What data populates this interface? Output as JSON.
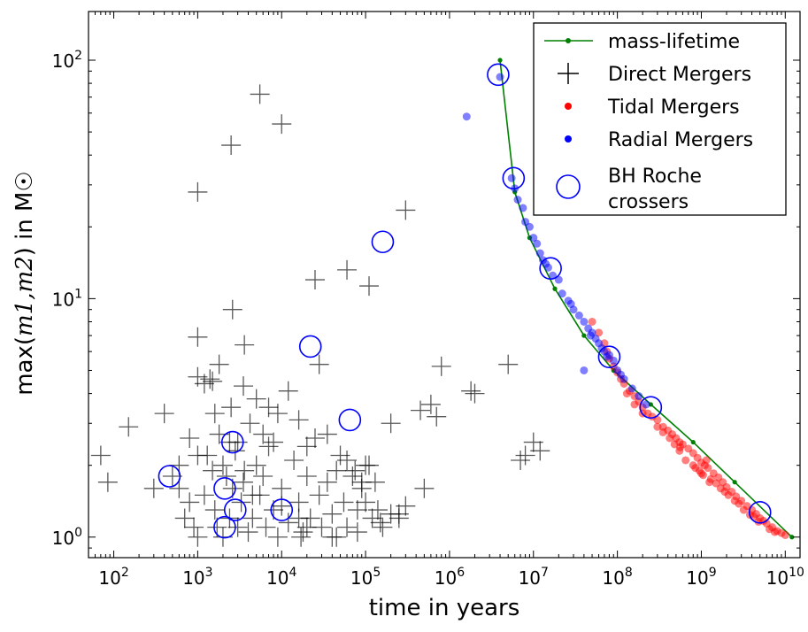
{
  "chart_data": {
    "type": "scatter",
    "xscale": "log",
    "yscale": "log",
    "xlim": [
      50,
      15000000000
    ],
    "ylim": [
      0.82,
      160
    ],
    "xlabel": "time in years",
    "ylabel_prefix": "max(",
    "ylabel_math": "m1,m2",
    "ylabel_suffix": ") in M☉",
    "xtick_labels": [
      {
        "base": "10",
        "exp": "2",
        "value": 100
      },
      {
        "base": "10",
        "exp": "3",
        "value": 1000
      },
      {
        "base": "10",
        "exp": "4",
        "value": 10000
      },
      {
        "base": "10",
        "exp": "5",
        "value": 100000
      },
      {
        "base": "10",
        "exp": "6",
        "value": 1000000
      },
      {
        "base": "10",
        "exp": "7",
        "value": 10000000
      },
      {
        "base": "10",
        "exp": "8",
        "value": 100000000
      },
      {
        "base": "10",
        "exp": "9",
        "value": 1000000000
      },
      {
        "base": "10",
        "exp": "10",
        "value": 10000000000
      }
    ],
    "ytick_labels": [
      {
        "base": "10",
        "exp": "0",
        "value": 1
      },
      {
        "base": "10",
        "exp": "1",
        "value": 10
      },
      {
        "base": "10",
        "exp": "2",
        "value": 100
      }
    ],
    "legend_location": "top-right",
    "legend": [
      {
        "label": "mass-lifetime",
        "symbol": "line-dot",
        "color": "#008000"
      },
      {
        "label": "Direct Mergers",
        "symbol": "plus",
        "color": "#000000"
      },
      {
        "label": "Tidal Mergers",
        "symbol": "dot",
        "color": "#ff0000"
      },
      {
        "label": "Radial Mergers",
        "symbol": "dot",
        "color": "#0000ff"
      },
      {
        "label": "BH Roche",
        "label2": "crossers",
        "symbol": "circle",
        "color": "#0000ff"
      }
    ],
    "series": [
      {
        "name": "mass-lifetime",
        "kind": "line",
        "color": "#008000",
        "points": [
          [
            4000000,
            100
          ],
          [
            6000000,
            28
          ],
          [
            9000000,
            18
          ],
          [
            18000000,
            11
          ],
          [
            40000000,
            7
          ],
          [
            90000000,
            5
          ],
          [
            250000000,
            3.6
          ],
          [
            800000000,
            2.5
          ],
          [
            2500000000,
            1.7
          ],
          [
            12000000000,
            1
          ]
        ]
      },
      {
        "name": "Direct Mergers",
        "kind": "plus",
        "color": "#000000",
        "points": [
          [
            70,
            2.2
          ],
          [
            85,
            1.7
          ],
          [
            150,
            2.9
          ],
          [
            300,
            1.6
          ],
          [
            400,
            3.3
          ],
          [
            500,
            1.8
          ],
          [
            600,
            1.6
          ],
          [
            700,
            1.2
          ],
          [
            800,
            1.4
          ],
          [
            900,
            1.1
          ],
          [
            1000,
            1.0
          ],
          [
            1200,
            1.5
          ],
          [
            1300,
            2.2
          ],
          [
            1500,
            1.9
          ],
          [
            1600,
            1.3
          ],
          [
            1700,
            1.1
          ],
          [
            1800,
            2.7
          ],
          [
            2000,
            1.0
          ],
          [
            2200,
            1.8
          ],
          [
            2400,
            1.2
          ],
          [
            2600,
            1.6
          ],
          [
            2800,
            2.3
          ],
          [
            3000,
            1.1
          ],
          [
            3300,
            1.4
          ],
          [
            3600,
            1.9
          ],
          [
            4000,
            1.05
          ],
          [
            4500,
            1.2
          ],
          [
            5000,
            2.0
          ],
          [
            5500,
            1.5
          ],
          [
            6000,
            1.8
          ],
          [
            6500,
            1.1
          ],
          [
            7000,
            2.4
          ],
          [
            8000,
            1.3
          ],
          [
            9000,
            1.0
          ],
          [
            10000,
            1.6
          ],
          [
            12000,
            1.15
          ],
          [
            14000,
            2.1
          ],
          [
            16000,
            1.4
          ],
          [
            18000,
            1.05
          ],
          [
            20000,
            1.8
          ],
          [
            22000,
            1.2
          ],
          [
            25000,
            2.6
          ],
          [
            28000,
            1.5
          ],
          [
            30000,
            1.1
          ],
          [
            35000,
            1.7
          ],
          [
            40000,
            1.25
          ],
          [
            45000,
            1.0
          ],
          [
            50000,
            2.2
          ],
          [
            55000,
            1.4
          ],
          [
            60000,
            1.1
          ],
          [
            70000,
            1.8
          ],
          [
            80000,
            1.05
          ],
          [
            90000,
            1.6
          ],
          [
            100000,
            2.0
          ],
          [
            120000,
            1.2
          ],
          [
            140000,
            1.3
          ],
          [
            160000,
            1.1
          ],
          [
            200000,
            3.0
          ],
          [
            250000,
            1.25
          ],
          [
            300000,
            1.35
          ],
          [
            450000,
            3.4
          ],
          [
            500000,
            1.6
          ],
          [
            600000,
            3.6
          ],
          [
            700000,
            3.2
          ],
          [
            600,
            2.0
          ],
          [
            800,
            2.6
          ],
          [
            1000,
            2.2
          ],
          [
            1200,
            4.4
          ],
          [
            1400,
            4.6
          ],
          [
            1600,
            3.3
          ],
          [
            2000,
            2.0
          ],
          [
            2500,
            3.5
          ],
          [
            3000,
            2.5
          ],
          [
            3500,
            4.3
          ],
          [
            4200,
            3.0
          ],
          [
            5000,
            3.8
          ],
          [
            6000,
            2.7
          ],
          [
            7000,
            3.5
          ],
          [
            8000,
            2.5
          ],
          [
            9000,
            3.3
          ],
          [
            12000,
            4.1
          ],
          [
            16000,
            3.1
          ],
          [
            20000,
            2.4
          ],
          [
            28000,
            5.3
          ],
          [
            35000,
            2.7
          ],
          [
            45000,
            1.9
          ],
          [
            60000,
            2.1
          ],
          [
            75000,
            1.9
          ],
          [
            90000,
            1.7
          ],
          [
            110000,
            2.0
          ],
          [
            130000,
            1.7
          ],
          [
            1000,
            6.9
          ],
          [
            1800,
            5.3
          ],
          [
            2600,
            9.0
          ],
          [
            3600,
            6.4
          ],
          [
            25000,
            12.0
          ],
          [
            60000,
            13.2
          ],
          [
            110000,
            11.3
          ],
          [
            300000,
            23.5
          ],
          [
            800000,
            5.2
          ],
          [
            1800000,
            4.1
          ],
          [
            2000000,
            4.0
          ],
          [
            5000000,
            5.3
          ],
          [
            7000000,
            2.1
          ],
          [
            8000000,
            2.2
          ],
          [
            10000000,
            2.5
          ],
          [
            12000000,
            2.3
          ],
          [
            1000,
            28.0
          ],
          [
            2500,
            44.0
          ],
          [
            5500,
            72.0
          ],
          [
            10000,
            54.0
          ],
          [
            1000,
            4.7
          ],
          [
            1500,
            4.5
          ],
          [
            2400,
            2.5
          ],
          [
            3500,
            1.7
          ],
          [
            4500,
            1.5
          ],
          [
            10000,
            1.35
          ],
          [
            16000,
            1.2
          ],
          [
            17000,
            1.0
          ],
          [
            20000,
            1.1
          ],
          [
            40000,
            1.0
          ],
          [
            80000,
            1.3
          ],
          [
            100000,
            1.4
          ],
          [
            150000,
            1.15
          ],
          [
            200000,
            1.25
          ],
          [
            250000,
            1.2
          ]
        ]
      },
      {
        "name": "Tidal Mergers",
        "kind": "dot",
        "color": "#ff0000",
        "points": [
          [
            50000000,
            8.0
          ],
          [
            60000000,
            7.2
          ],
          [
            70000000,
            6.5
          ],
          [
            75000000,
            6.0
          ],
          [
            80000000,
            5.6
          ],
          [
            90000000,
            5.2
          ],
          [
            100000000,
            4.9
          ],
          [
            110000000,
            4.6
          ],
          [
            120000000,
            4.4
          ],
          [
            140000000,
            4.1
          ],
          [
            160000000,
            3.9
          ],
          [
            180000000,
            3.7
          ],
          [
            200000000,
            3.5
          ],
          [
            230000000,
            3.3
          ],
          [
            260000000,
            3.2
          ],
          [
            300000000,
            3.1
          ],
          [
            350000000,
            2.9
          ],
          [
            400000000,
            2.8
          ],
          [
            450000000,
            2.7
          ],
          [
            500000000,
            2.6
          ],
          [
            550000000,
            2.5
          ],
          [
            600000000,
            2.45
          ],
          [
            700000000,
            2.35
          ],
          [
            800000000,
            2.25
          ],
          [
            900000000,
            2.15
          ],
          [
            1000000000,
            2.05
          ],
          [
            1100000000,
            2.0
          ],
          [
            1200000000,
            1.95
          ],
          [
            1400000000,
            1.85
          ],
          [
            1600000000,
            1.78
          ],
          [
            1800000000,
            1.7
          ],
          [
            2000000000,
            1.62
          ],
          [
            2300000000,
            1.55
          ],
          [
            2600000000,
            1.48
          ],
          [
            3000000000,
            1.42
          ],
          [
            3500000000,
            1.35
          ],
          [
            4000000000,
            1.3
          ],
          [
            4500000000,
            1.25
          ],
          [
            5000000000,
            1.2
          ],
          [
            5500000000,
            1.17
          ],
          [
            6000000000,
            1.14
          ],
          [
            7000000000,
            1.1
          ],
          [
            8000000000,
            1.06
          ],
          [
            9000000000,
            1.04
          ],
          [
            10000000000,
            1.02
          ],
          [
            550000000,
            2.3
          ],
          [
            650000000,
            2.1
          ],
          [
            850000000,
            1.95
          ],
          [
            950000000,
            1.9
          ],
          [
            1050000000,
            1.82
          ],
          [
            1300000000,
            1.75
          ],
          [
            1500000000,
            1.68
          ],
          [
            1700000000,
            1.6
          ],
          [
            2100000000,
            1.5
          ],
          [
            2500000000,
            1.42
          ],
          [
            3200000000,
            1.3
          ],
          [
            3800000000,
            1.24
          ],
          [
            4800000000,
            1.16
          ],
          [
            6500000000,
            1.08
          ],
          [
            800000000,
            2.0
          ],
          [
            1000000000,
            1.85
          ],
          [
            1250000000,
            1.7
          ],
          [
            1900000000,
            1.55
          ],
          [
            2800000000,
            1.38
          ],
          [
            4200000000,
            1.22
          ],
          [
            7500000000,
            1.05
          ],
          [
            300000000,
            2.9
          ],
          [
            350000000,
            2.75
          ],
          [
            420000000,
            2.6
          ],
          [
            480000000,
            2.45
          ],
          [
            560000000,
            2.38
          ],
          [
            1150000000,
            2.1
          ],
          [
            160000000,
            3.6
          ],
          [
            200000000,
            3.3
          ],
          [
            130000000,
            4.0
          ]
        ]
      },
      {
        "name": "Radial Mergers",
        "kind": "dot",
        "color": "#0000ff",
        "points": [
          [
            4000000,
            85.0
          ],
          [
            5500000,
            32.0
          ],
          [
            6000000,
            29.0
          ],
          [
            6500000,
            26.0
          ],
          [
            7500000,
            24.0
          ],
          [
            8000000,
            21.0
          ],
          [
            9000000,
            20.0
          ],
          [
            11000000,
            17.0
          ],
          [
            12000000,
            15.5
          ],
          [
            13000000,
            14.5
          ],
          [
            15000000,
            13.5
          ],
          [
            17000000,
            12.5
          ],
          [
            20000000,
            12.0
          ],
          [
            22000000,
            10.5
          ],
          [
            26000000,
            9.8
          ],
          [
            30000000,
            9.0
          ],
          [
            35000000,
            8.5
          ],
          [
            40000000,
            8.0
          ],
          [
            40000000,
            5.0
          ],
          [
            45000000,
            7.5
          ],
          [
            50000000,
            7.2
          ],
          [
            55000000,
            6.8
          ],
          [
            60000000,
            6.5
          ],
          [
            65000000,
            6.2
          ],
          [
            70000000,
            6.0
          ],
          [
            80000000,
            5.8
          ],
          [
            90000000,
            5.5
          ],
          [
            100000000,
            5.0
          ],
          [
            120000000,
            4.6
          ],
          [
            150000000,
            4.2
          ],
          [
            180000000,
            3.9
          ],
          [
            220000000,
            3.6
          ],
          [
            1600000,
            58.0
          ],
          [
            10000000,
            18.0
          ],
          [
            14000000,
            14.0
          ],
          [
            28000000,
            9.5
          ],
          [
            48000000,
            7.0
          ],
          [
            75000000,
            5.7
          ],
          [
            110000000,
            4.8
          ]
        ]
      },
      {
        "name": "BH Roche crossers",
        "kind": "circle",
        "color": "#0000ff",
        "points": [
          [
            460,
            1.8
          ],
          [
            2100,
            1.6
          ],
          [
            2100,
            1.1
          ],
          [
            2600,
            2.5
          ],
          [
            2800,
            1.3
          ],
          [
            10000,
            1.3
          ],
          [
            22000,
            6.3
          ],
          [
            65000,
            3.1
          ],
          [
            160000,
            17.3
          ],
          [
            3800000,
            87.0
          ],
          [
            5800000,
            32.0
          ],
          [
            16000000,
            13.4
          ],
          [
            80000000,
            5.7
          ],
          [
            250000000,
            3.5
          ],
          [
            5000000000,
            1.27
          ]
        ]
      }
    ]
  }
}
